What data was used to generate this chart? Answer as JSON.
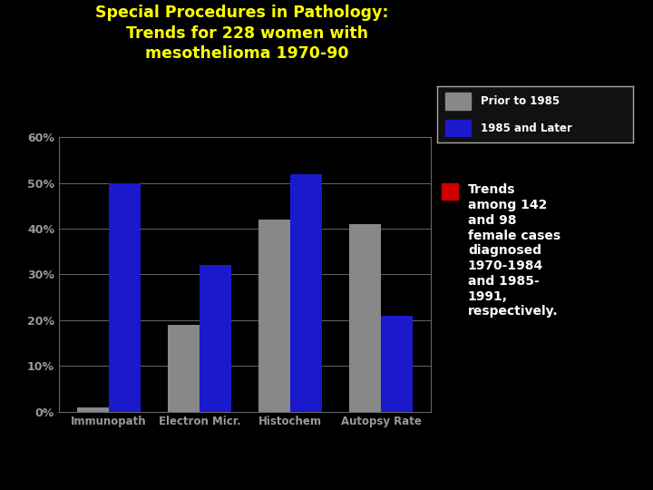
{
  "title": "Special Procedures in Pathology:\n  Trends for 228 women with\n  mesothelioma 1970-90",
  "categories": [
    "Immunopath",
    "Electron Micr.",
    "Histochem",
    "Autopsy Rate"
  ],
  "prior_1985": [
    1,
    19,
    42,
    41
  ],
  "after_1985": [
    50,
    32,
    52,
    21
  ],
  "prior_color": "#888888",
  "after_color": "#1a1acc",
  "background_color": "#000000",
  "plot_bg_color": "#000000",
  "title_color": "#ffff00",
  "tick_label_color": "#ffffff",
  "legend_labels": [
    "Prior to 1985",
    "1985 and Later"
  ],
  "ylim": [
    0,
    60
  ],
  "yticks": [
    0,
    10,
    20,
    30,
    40,
    50,
    60
  ],
  "ytick_labels": [
    "0%",
    "10%",
    "20%",
    "30%",
    "40%",
    "50%",
    "60%"
  ],
  "annotation_text": "Trends\namong 142\nand 98\nfemale cases\ndiagnosed\n1970-1984\nand 1985-\n1991,\nrespectively.",
  "annotation_color": "#ffffff",
  "annotation_bullet_color": "#cc0000",
  "grid_color": "#666666",
  "bar_width": 0.35
}
